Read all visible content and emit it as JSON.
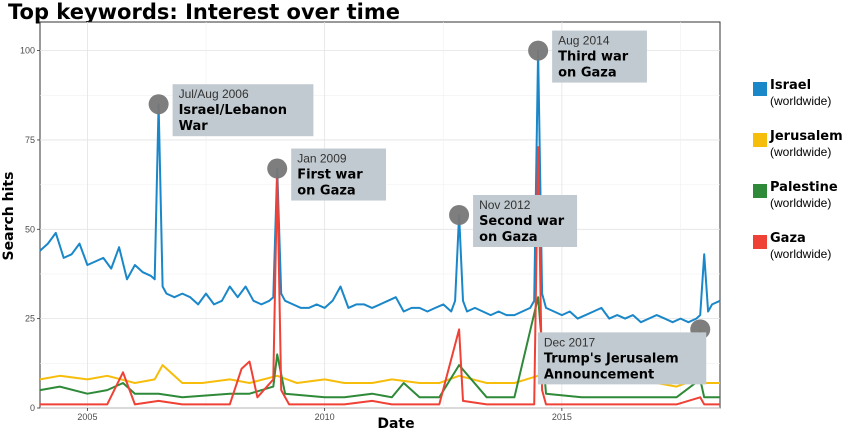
{
  "colors": {
    "israel": "#1a87c9",
    "jerusalem": "#f7bd0b",
    "palestine": "#2e8a38",
    "gaza": "#ef4136",
    "annotation_box": "#c1cad0",
    "marker": "#777777"
  },
  "chart_data": {
    "type": "line",
    "title": "Top keywords: Interest over time",
    "xlabel": "Date",
    "ylabel": "Search hits",
    "xlim": [
      "2004-01",
      "2018-05"
    ],
    "ylim": [
      0,
      108
    ],
    "x_ticks": [
      "2005",
      "2010",
      "2015"
    ],
    "y_ticks": [
      "0",
      "25",
      "50",
      "75",
      "100"
    ],
    "grid": true,
    "legend_position": "right",
    "legend": [
      {
        "name": "Israel",
        "sub": "(worldwide)"
      },
      {
        "name": "Jerusalem",
        "sub": "(worldwide)"
      },
      {
        "name": "Palestine",
        "sub": "(worldwide)"
      },
      {
        "name": "Gaza",
        "sub": "(worldwide)"
      }
    ],
    "series": [
      {
        "name": "Israel",
        "color_key": "israel",
        "x": [
          "2004-01",
          "2004-03",
          "2004-05",
          "2004-07",
          "2004-09",
          "2004-11",
          "2005-01",
          "2005-03",
          "2005-05",
          "2005-07",
          "2005-09",
          "2005-11",
          "2006-01",
          "2006-03",
          "2006-05",
          "2006-06",
          "2006-07",
          "2006-08",
          "2006-09",
          "2006-11",
          "2007-01",
          "2007-03",
          "2007-05",
          "2007-07",
          "2007-09",
          "2007-11",
          "2008-01",
          "2008-03",
          "2008-05",
          "2008-07",
          "2008-09",
          "2008-11",
          "2008-12",
          "2009-01",
          "2009-02",
          "2009-03",
          "2009-05",
          "2009-07",
          "2009-09",
          "2009-11",
          "2010-01",
          "2010-03",
          "2010-05",
          "2010-07",
          "2010-09",
          "2010-11",
          "2011-01",
          "2011-03",
          "2011-05",
          "2011-07",
          "2011-09",
          "2011-11",
          "2012-01",
          "2012-03",
          "2012-05",
          "2012-07",
          "2012-09",
          "2012-10",
          "2012-11",
          "2012-12",
          "2013-01",
          "2013-03",
          "2013-05",
          "2013-07",
          "2013-09",
          "2013-11",
          "2014-01",
          "2014-03",
          "2014-05",
          "2014-06",
          "2014-07",
          "2014-08",
          "2014-09",
          "2014-11",
          "2015-01",
          "2015-03",
          "2015-05",
          "2015-07",
          "2015-09",
          "2015-11",
          "2016-01",
          "2016-03",
          "2016-05",
          "2016-07",
          "2016-09",
          "2016-11",
          "2017-01",
          "2017-03",
          "2017-05",
          "2017-07",
          "2017-09",
          "2017-11",
          "2017-12",
          "2018-01",
          "2018-02",
          "2018-03",
          "2018-05"
        ],
        "y": [
          44,
          46,
          49,
          42,
          43,
          46,
          40,
          41,
          42,
          39,
          45,
          36,
          40,
          38,
          37,
          36,
          85,
          34,
          32,
          31,
          32,
          31,
          29,
          32,
          29,
          30,
          34,
          31,
          34,
          30,
          29,
          30,
          31,
          67,
          32,
          30,
          29,
          28,
          28,
          29,
          28,
          30,
          34,
          28,
          29,
          29,
          28,
          29,
          30,
          31,
          27,
          28,
          28,
          27,
          28,
          29,
          27,
          30,
          54,
          30,
          27,
          28,
          27,
          26,
          27,
          26,
          26,
          27,
          28,
          30,
          100,
          32,
          28,
          27,
          26,
          27,
          25,
          26,
          27,
          28,
          25,
          26,
          25,
          26,
          24,
          25,
          26,
          25,
          24,
          25,
          24,
          25,
          26,
          43,
          27,
          29,
          30
        ]
      },
      {
        "name": "Jerusalem",
        "color_key": "jerusalem",
        "x": [
          "2004-01",
          "2004-06",
          "2005-01",
          "2005-06",
          "2006-01",
          "2006-06",
          "2006-08",
          "2007-01",
          "2007-06",
          "2008-01",
          "2008-06",
          "2009-01",
          "2009-06",
          "2010-01",
          "2010-06",
          "2011-01",
          "2011-06",
          "2012-01",
          "2012-06",
          "2012-11",
          "2013-06",
          "2014-01",
          "2014-07",
          "2015-01",
          "2015-06",
          "2016-01",
          "2016-06",
          "2017-01",
          "2017-06",
          "2017-11",
          "2017-12",
          "2018-01",
          "2018-05"
        ],
        "y": [
          8,
          9,
          8,
          9,
          7,
          8,
          12,
          7,
          7,
          8,
          7,
          9,
          7,
          8,
          7,
          7,
          8,
          7,
          7,
          9,
          7,
          7,
          9,
          7,
          8,
          7,
          7,
          7,
          6,
          8,
          22,
          7,
          7
        ]
      },
      {
        "name": "Palestine",
        "color_key": "palestine",
        "x": [
          "2004-01",
          "2004-06",
          "2005-01",
          "2005-06",
          "2005-10",
          "2006-01",
          "2006-07",
          "2007-01",
          "2008-01",
          "2008-06",
          "2008-12",
          "2009-01",
          "2009-03",
          "2010-01",
          "2010-06",
          "2011-01",
          "2011-06",
          "2011-09",
          "2012-01",
          "2012-06",
          "2012-11",
          "2013-06",
          "2014-01",
          "2014-07",
          "2014-09",
          "2015-06",
          "2016-01",
          "2016-06",
          "2017-01",
          "2017-06",
          "2017-12",
          "2018-01",
          "2018-05"
        ],
        "y": [
          5,
          6,
          4,
          5,
          7,
          4,
          4,
          3,
          4,
          4,
          6,
          15,
          4,
          3,
          3,
          4,
          3,
          7,
          3,
          3,
          12,
          3,
          3,
          31,
          4,
          3,
          3,
          3,
          3,
          3,
          8,
          3,
          3
        ]
      },
      {
        "name": "Gaza",
        "color_key": "gaza",
        "x": [
          "2004-01",
          "2004-06",
          "2005-01",
          "2005-06",
          "2005-10",
          "2006-01",
          "2006-07",
          "2007-01",
          "2007-06",
          "2008-01",
          "2008-04",
          "2008-06",
          "2008-08",
          "2008-12",
          "2009-01",
          "2009-02",
          "2009-04",
          "2010-01",
          "2010-06",
          "2011-01",
          "2011-06",
          "2012-01",
          "2012-06",
          "2012-11",
          "2012-12",
          "2013-06",
          "2014-01",
          "2014-06",
          "2014-07",
          "2014-08",
          "2014-09",
          "2015-06",
          "2016-01",
          "2016-06",
          "2017-01",
          "2017-06",
          "2017-12",
          "2018-01",
          "2018-05"
        ],
        "y": [
          1,
          1,
          1,
          1,
          10,
          1,
          2,
          1,
          1,
          1,
          11,
          13,
          3,
          8,
          65,
          5,
          1,
          1,
          1,
          2,
          1,
          1,
          1,
          22,
          2,
          1,
          1,
          1,
          73,
          5,
          1,
          1,
          1,
          1,
          1,
          1,
          3,
          1,
          1
        ]
      }
    ],
    "annotations": [
      {
        "date": "Jul/Aug 2006",
        "text": [
          "Israel/Lebanon",
          "War"
        ],
        "x": "2006-07",
        "y": 85
      },
      {
        "date": "Jan 2009",
        "text": [
          "First war",
          "on Gaza"
        ],
        "x": "2009-01",
        "y": 67
      },
      {
        "date": "Nov 2012",
        "text": [
          "Second war",
          "on Gaza"
        ],
        "x": "2012-11",
        "y": 54
      },
      {
        "date": "Aug 2014",
        "text": [
          "Third war",
          "on Gaza"
        ],
        "x": "2014-07",
        "y": 100
      },
      {
        "date": "Dec 2017",
        "text": [
          "Trump's Jerusalem",
          "Announcement"
        ],
        "x": "2017-12",
        "y": 22
      }
    ]
  }
}
